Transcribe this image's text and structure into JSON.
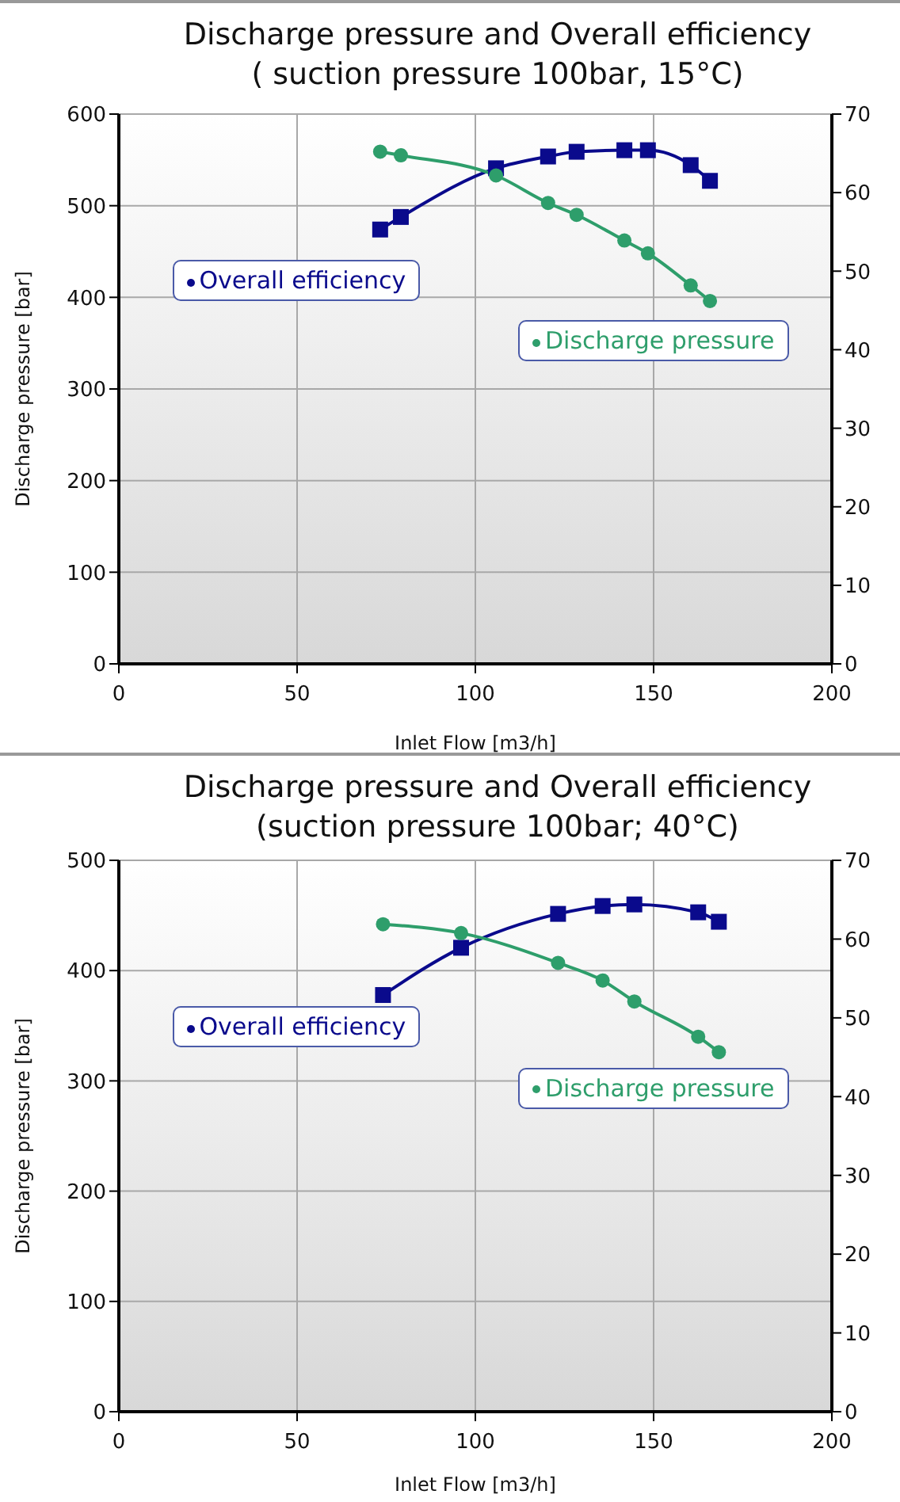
{
  "chart_data": [
    {
      "type": "line",
      "title": "Discharge pressure and Overall efficiency",
      "subtitle": "( suction pressure 100bar, 15°C)",
      "xlabel": "Inlet Flow [m3/h]",
      "ylabel": "Discharge pressure [bar]",
      "x": [
        73.3,
        79.1,
        105.8,
        120.4,
        128.4,
        141.8,
        148.4,
        160.4,
        165.8
      ],
      "series": [
        {
          "name": "Overall efficiency",
          "color": "#0a0a8c",
          "axis": "y2",
          "marker": "square",
          "values": [
            55.3,
            56.9,
            63.1,
            64.6,
            65.2,
            65.4,
            65.4,
            63.5,
            61.5
          ]
        },
        {
          "name": "Discharge pressure",
          "color": "#2e9e6b",
          "marker": "circle",
          "values": [
            559,
            555,
            533,
            503,
            490,
            462,
            448,
            413,
            396
          ]
        }
      ],
      "xlim": [
        0,
        200
      ],
      "xticks": [
        0,
        50,
        100,
        150,
        200
      ],
      "ylim": [
        0,
        600
      ],
      "yticks": [
        0,
        100,
        200,
        300,
        400,
        500,
        600
      ],
      "y2lim": [
        0,
        70
      ],
      "y2ticks": [
        0,
        10,
        20,
        30,
        40,
        50,
        60,
        70
      ],
      "grid": true,
      "legend": "center"
    },
    {
      "type": "line",
      "title": "Discharge pressure and Overall efficiency",
      "subtitle": "(suction pressure 100bar; 40°C)",
      "xlabel": "Inlet Flow [m3/h]",
      "ylabel": "Discharge pressure [bar]",
      "x": [
        74.1,
        96.0,
        123.2,
        135.7,
        144.6,
        162.5,
        168.3
      ],
      "series": [
        {
          "name": "Overall efficiency",
          "color": "#0a0a8c",
          "axis": "y2",
          "marker": "square",
          "values": [
            52.9,
            58.9,
            63.2,
            64.2,
            64.4,
            63.4,
            62.2
          ]
        },
        {
          "name": "Discharge pressure",
          "color": "#2e9e6b",
          "marker": "circle",
          "values": [
            442,
            434,
            407,
            391,
            372,
            340,
            326
          ]
        }
      ],
      "xlim": [
        0,
        200
      ],
      "xticks": [
        0,
        50,
        100,
        150,
        200
      ],
      "ylim": [
        0,
        500
      ],
      "yticks": [
        0,
        100,
        200,
        300,
        400,
        500
      ],
      "y2lim": [
        0,
        70
      ],
      "y2ticks": [
        0,
        10,
        20,
        30,
        40,
        50,
        60,
        70
      ],
      "grid": true,
      "legend": "center"
    }
  ]
}
